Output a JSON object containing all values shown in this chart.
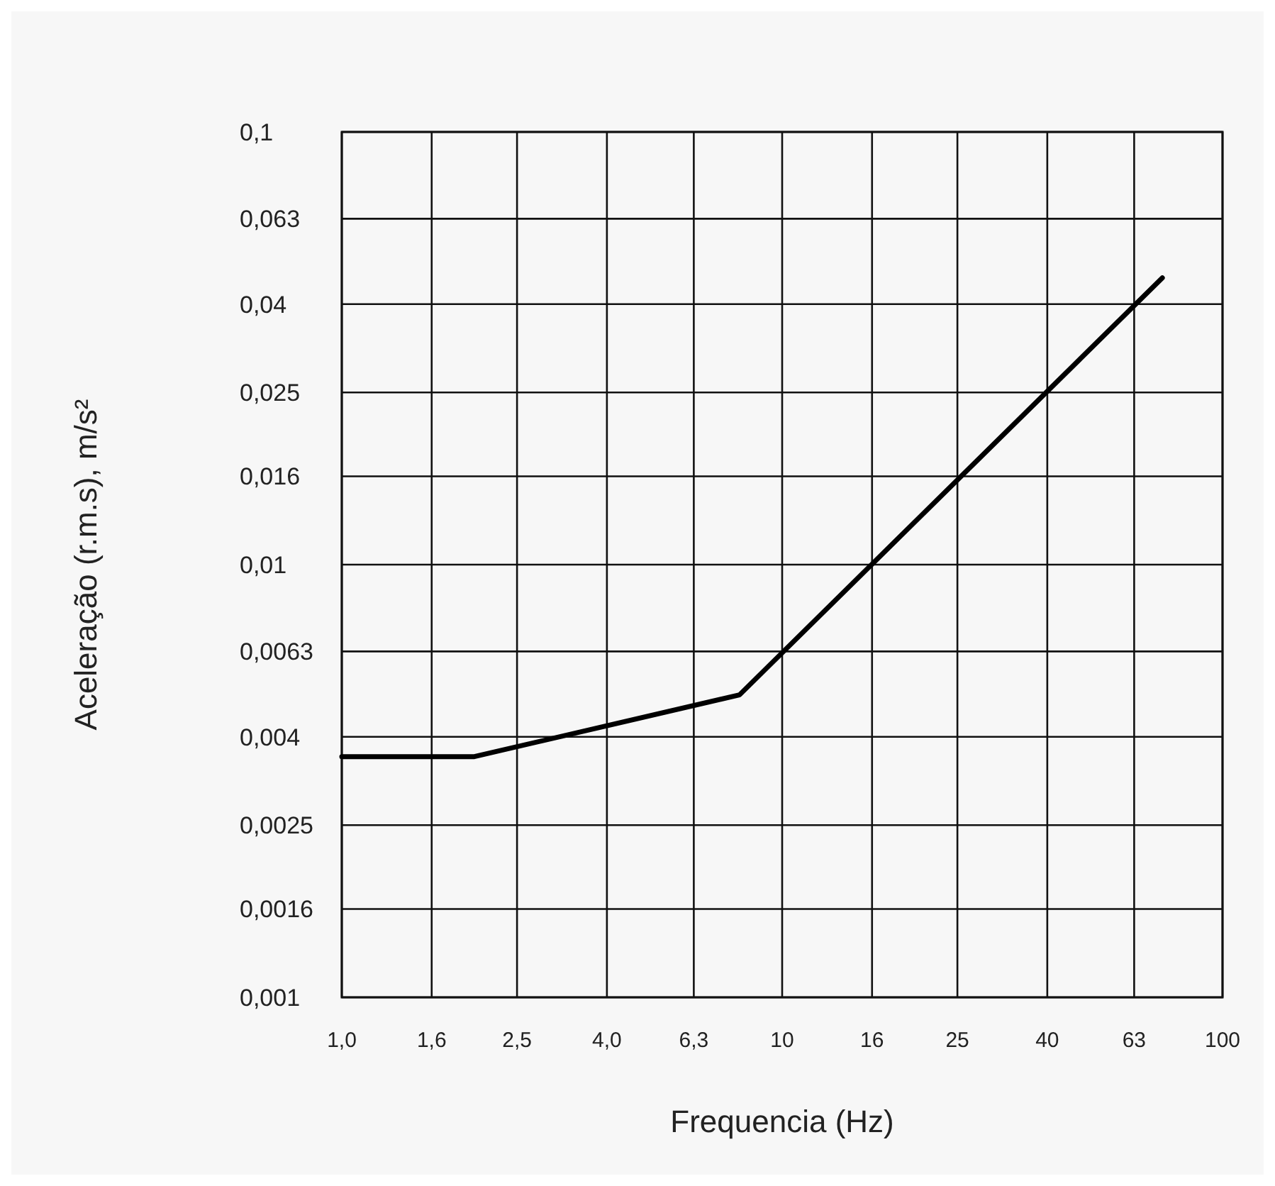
{
  "chart_data": {
    "type": "line",
    "xlabel": "Frequencia (Hz)",
    "ylabel": "Aceleração (r.m.s), m/s²",
    "log": "xy",
    "grid": true,
    "marker": "none",
    "line_style": "solid",
    "xlim": [
      1,
      100
    ],
    "xticks": [
      {
        "value": 1,
        "label": "1,0"
      },
      {
        "value": 1.6,
        "label": "1,6"
      },
      {
        "value": 2.5,
        "label": "2,5"
      },
      {
        "value": 4,
        "label": "4,0"
      },
      {
        "value": 6.3,
        "label": "6,3"
      },
      {
        "value": 10,
        "label": "10"
      },
      {
        "value": 16,
        "label": "16"
      },
      {
        "value": 25,
        "label": "25"
      },
      {
        "value": 40,
        "label": "40"
      },
      {
        "value": 63,
        "label": "63"
      },
      {
        "value": 100,
        "label": "100"
      }
    ],
    "ylim": [
      0.001,
      0.1
    ],
    "yticks": [
      {
        "value": 0.001,
        "label": "0,001"
      },
      {
        "value": 0.0016,
        "label": "0,0016"
      },
      {
        "value": 0.0025,
        "label": "0,0025"
      },
      {
        "value": 0.004,
        "label": "0,004"
      },
      {
        "value": 0.0063,
        "label": "0,0063"
      },
      {
        "value": 0.01,
        "label": "0,01"
      },
      {
        "value": 0.016,
        "label": "0,016"
      },
      {
        "value": 0.025,
        "label": "0,025"
      },
      {
        "value": 0.04,
        "label": "0,04"
      },
      {
        "value": 0.063,
        "label": "0,063"
      },
      {
        "value": 0.1,
        "label": "0,1"
      }
    ],
    "series": [
      {
        "color": "#000000",
        "x": [
          1,
          2,
          8,
          73
        ],
        "values": [
          0.0036,
          0.0036,
          0.005,
          0.046
        ]
      }
    ]
  }
}
